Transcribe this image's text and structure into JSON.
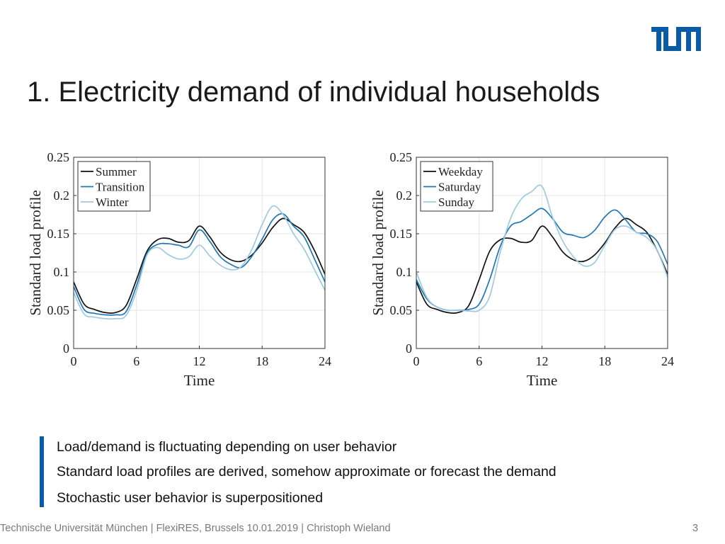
{
  "slide": {
    "title": "1. Electricity demand of individual households",
    "logo_color": "#0a5ba6",
    "bullets": [
      "Load/demand is fluctuating depending on user behavior",
      "Standard load profiles are derived, somehow approximate or forecast the demand",
      "Stochastic user behavior is superpositioned"
    ],
    "footer": "Technische Universität München | FlexiRES, Brussels 10.01.2019 | Christoph Wieland",
    "page_number": "3"
  },
  "chart_data": [
    {
      "type": "line",
      "xlabel": "Time",
      "ylabel": "Standard load profile",
      "xlim": [
        0,
        24
      ],
      "ylim": [
        0,
        0.25
      ],
      "xticks": [
        "0",
        "6",
        "12",
        "18",
        "24"
      ],
      "yticks": [
        "0",
        "0.05",
        "0.1",
        "0.15",
        "0.2",
        "0.25"
      ],
      "grid": true,
      "legend": "top-left",
      "x": [
        0,
        1,
        2,
        3,
        4,
        5,
        6,
        7,
        8,
        9,
        10,
        11,
        12,
        13,
        14,
        15,
        16,
        17,
        18,
        19,
        20,
        21,
        22,
        23,
        24
      ],
      "series": [
        {
          "name": "Summer",
          "color": "#111111",
          "values": [
            0.087,
            0.058,
            0.051,
            0.047,
            0.047,
            0.056,
            0.09,
            0.127,
            0.142,
            0.144,
            0.139,
            0.141,
            0.16,
            0.146,
            0.126,
            0.116,
            0.114,
            0.122,
            0.138,
            0.158,
            0.17,
            0.162,
            0.152,
            0.128,
            0.097
          ]
        },
        {
          "name": "Transition",
          "color": "#1f78b4",
          "values": [
            0.081,
            0.051,
            0.046,
            0.044,
            0.044,
            0.048,
            0.082,
            0.124,
            0.136,
            0.137,
            0.135,
            0.133,
            0.155,
            0.14,
            0.12,
            0.11,
            0.106,
            0.12,
            0.143,
            0.168,
            0.176,
            0.16,
            0.146,
            0.117,
            0.087
          ]
        },
        {
          "name": "Winter",
          "color": "#9ecae1",
          "values": [
            0.073,
            0.045,
            0.041,
            0.039,
            0.039,
            0.043,
            0.075,
            0.122,
            0.132,
            0.123,
            0.117,
            0.12,
            0.135,
            0.121,
            0.109,
            0.103,
            0.107,
            0.129,
            0.162,
            0.186,
            0.175,
            0.15,
            0.13,
            0.103,
            0.076
          ]
        }
      ]
    },
    {
      "type": "line",
      "xlabel": "Time",
      "ylabel": "Standard load profile",
      "xlim": [
        0,
        24
      ],
      "ylim": [
        0,
        0.25
      ],
      "xticks": [
        "0",
        "6",
        "12",
        "18",
        "24"
      ],
      "yticks": [
        "0",
        "0.05",
        "0.1",
        "0.15",
        "0.2",
        "0.25"
      ],
      "grid": true,
      "legend": "top-left",
      "x": [
        0,
        1,
        2,
        3,
        4,
        5,
        6,
        7,
        8,
        9,
        10,
        11,
        12,
        13,
        14,
        15,
        16,
        17,
        18,
        19,
        20,
        21,
        22,
        23,
        24
      ],
      "series": [
        {
          "name": "Weekday",
          "color": "#111111",
          "values": [
            0.087,
            0.058,
            0.051,
            0.047,
            0.047,
            0.056,
            0.09,
            0.127,
            0.142,
            0.144,
            0.139,
            0.141,
            0.16,
            0.146,
            0.126,
            0.116,
            0.114,
            0.122,
            0.138,
            0.158,
            0.17,
            0.162,
            0.152,
            0.128,
            0.097
          ]
        },
        {
          "name": "Saturday",
          "color": "#1f78b4",
          "values": [
            0.09,
            0.065,
            0.054,
            0.05,
            0.05,
            0.051,
            0.058,
            0.09,
            0.133,
            0.16,
            0.166,
            0.175,
            0.183,
            0.17,
            0.152,
            0.148,
            0.145,
            0.154,
            0.172,
            0.181,
            0.168,
            0.152,
            0.15,
            0.14,
            0.11
          ]
        },
        {
          "name": "Sunday",
          "color": "#9ecae1",
          "values": [
            0.1,
            0.067,
            0.054,
            0.05,
            0.05,
            0.049,
            0.05,
            0.068,
            0.125,
            0.17,
            0.195,
            0.205,
            0.212,
            0.172,
            0.14,
            0.12,
            0.108,
            0.112,
            0.135,
            0.156,
            0.16,
            0.152,
            0.145,
            0.128,
            0.093
          ]
        }
      ]
    }
  ]
}
